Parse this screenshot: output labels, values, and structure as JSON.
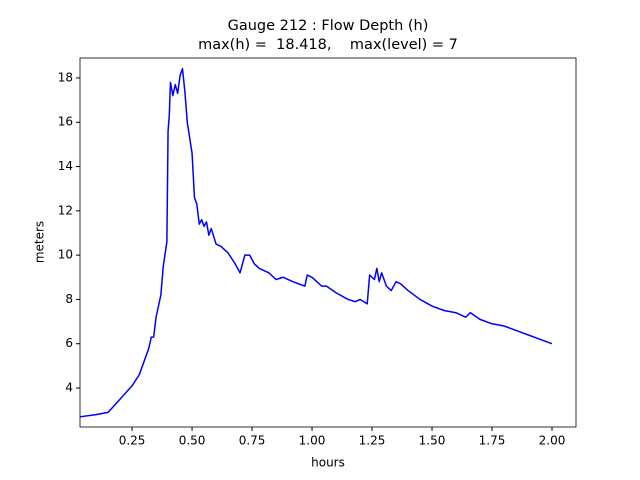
{
  "chart_data": {
    "type": "line",
    "title": "Gauge 212 : Flow Depth (h)",
    "subtitle": "max(h) =  18.418,    max(level) = 7",
    "xlabel": "hours",
    "ylabel": "meters",
    "x": [
      0.033,
      0.1,
      0.15,
      0.2,
      0.25,
      0.28,
      0.3,
      0.32,
      0.33,
      0.34,
      0.35,
      0.37,
      0.38,
      0.395,
      0.4,
      0.405,
      0.41,
      0.42,
      0.43,
      0.44,
      0.45,
      0.46,
      0.47,
      0.48,
      0.5,
      0.51,
      0.52,
      0.53,
      0.54,
      0.55,
      0.56,
      0.57,
      0.58,
      0.6,
      0.62,
      0.65,
      0.68,
      0.7,
      0.72,
      0.74,
      0.76,
      0.78,
      0.82,
      0.85,
      0.88,
      0.92,
      0.97,
      0.98,
      1.0,
      1.02,
      1.04,
      1.06,
      1.1,
      1.15,
      1.18,
      1.2,
      1.23,
      1.24,
      1.26,
      1.27,
      1.28,
      1.29,
      1.31,
      1.33,
      1.35,
      1.37,
      1.4,
      1.45,
      1.5,
      1.55,
      1.6,
      1.64,
      1.66,
      1.7,
      1.75,
      1.8,
      1.85,
      1.9,
      1.95,
      2.0
    ],
    "series": [
      {
        "name": "h",
        "color": "#0000ff",
        "values": [
          2.7,
          2.8,
          2.9,
          3.5,
          4.1,
          4.6,
          5.2,
          5.8,
          6.3,
          6.3,
          7.2,
          8.2,
          9.5,
          10.6,
          15.6,
          16.3,
          17.8,
          17.2,
          17.7,
          17.3,
          18.1,
          18.418,
          17.4,
          16.0,
          14.6,
          12.6,
          12.3,
          11.4,
          11.6,
          11.3,
          11.5,
          10.9,
          11.2,
          10.5,
          10.4,
          10.1,
          9.6,
          9.2,
          10.0,
          10.0,
          9.6,
          9.4,
          9.2,
          8.9,
          9.0,
          8.8,
          8.6,
          9.1,
          9.0,
          8.8,
          8.6,
          8.6,
          8.3,
          8.0,
          7.9,
          8.0,
          7.8,
          9.1,
          8.9,
          9.4,
          8.8,
          9.2,
          8.6,
          8.4,
          8.8,
          8.7,
          8.4,
          8.0,
          7.7,
          7.5,
          7.4,
          7.2,
          7.4,
          7.1,
          6.9,
          6.8,
          6.6,
          6.4,
          6.2,
          6.0
        ]
      }
    ],
    "xlim": [
      0.033,
      2.1
    ],
    "ylim": [
      2.24,
      18.9
    ],
    "xticks": [
      0.25,
      {
        "value": 0.5,
        "label": "0.50"
      },
      0.75,
      {
        "value": 1,
        "label": "1.00"
      },
      1.25,
      {
        "value": 1.5,
        "label": "1.50"
      },
      1.75,
      {
        "value": 2,
        "label": "2.00"
      }
    ],
    "yticks": [
      4,
      6,
      8,
      10,
      12,
      14,
      16,
      18
    ]
  }
}
